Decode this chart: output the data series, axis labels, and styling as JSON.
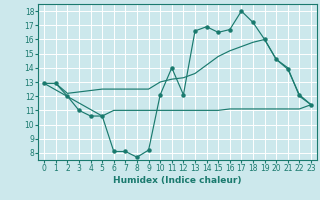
{
  "title": "",
  "xlabel": "Humidex (Indice chaleur)",
  "background_color": "#cce8ec",
  "grid_color": "#ffffff",
  "line_color": "#1a7a6e",
  "xlim": [
    -0.5,
    23.5
  ],
  "ylim": [
    7.5,
    18.5
  ],
  "yticks": [
    8,
    9,
    10,
    11,
    12,
    13,
    14,
    15,
    16,
    17,
    18
  ],
  "xticks": [
    0,
    1,
    2,
    3,
    4,
    5,
    6,
    7,
    8,
    9,
    10,
    11,
    12,
    13,
    14,
    15,
    16,
    17,
    18,
    19,
    20,
    21,
    22,
    23
  ],
  "line1_x": [
    0,
    1,
    2,
    3,
    4,
    5,
    6,
    7,
    8,
    9,
    10,
    11,
    12,
    13,
    14,
    15,
    16,
    17,
    18,
    19,
    20,
    21,
    22,
    23
  ],
  "line1_y": [
    12.9,
    12.9,
    12.0,
    11.0,
    10.6,
    10.6,
    8.1,
    8.1,
    7.7,
    8.2,
    12.1,
    14.0,
    12.1,
    16.6,
    16.9,
    16.5,
    16.7,
    18.0,
    17.2,
    16.0,
    14.6,
    13.9,
    12.1,
    11.4
  ],
  "line2_x": [
    0,
    1,
    2,
    3,
    4,
    5,
    6,
    7,
    8,
    9,
    10,
    11,
    12,
    13,
    14,
    15,
    16,
    17,
    18,
    19,
    20,
    21,
    22,
    23
  ],
  "line2_y": [
    12.9,
    12.9,
    12.2,
    12.3,
    12.4,
    12.5,
    12.5,
    12.5,
    12.5,
    12.5,
    13.0,
    13.2,
    13.3,
    13.6,
    14.2,
    14.8,
    15.2,
    15.5,
    15.8,
    16.0,
    14.6,
    14.0,
    12.0,
    11.4
  ],
  "line3_x": [
    0,
    5,
    6,
    7,
    8,
    9,
    10,
    11,
    12,
    13,
    14,
    15,
    16,
    17,
    18,
    19,
    20,
    21,
    22,
    23
  ],
  "line3_y": [
    12.9,
    10.6,
    11.0,
    11.0,
    11.0,
    11.0,
    11.0,
    11.0,
    11.0,
    11.0,
    11.0,
    11.0,
    11.1,
    11.1,
    11.1,
    11.1,
    11.1,
    11.1,
    11.1,
    11.4
  ],
  "tick_fontsize": 5.5,
  "xlabel_fontsize": 6.5
}
